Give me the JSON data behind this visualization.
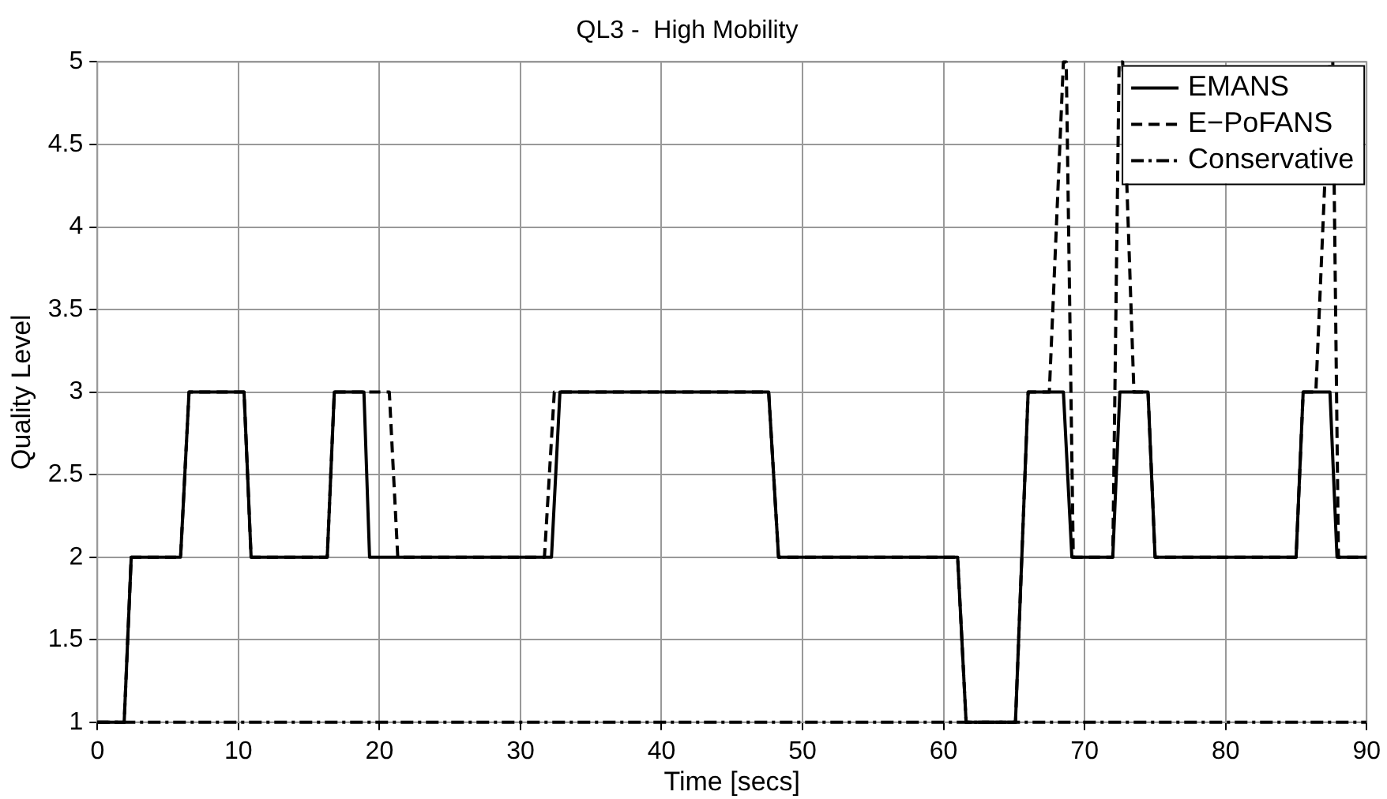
{
  "chart_data": {
    "type": "line",
    "title": "QL3 -  High Mobility",
    "xlabel": "Time [secs]",
    "ylabel": "Quality Level",
    "xlim": [
      0,
      90
    ],
    "xticks": [
      0,
      10,
      20,
      30,
      40,
      50,
      60,
      70,
      80,
      90
    ],
    "ylim": [
      1,
      5
    ],
    "yticks": [
      1,
      1.5,
      2,
      2.5,
      3,
      3.5,
      4,
      4.5,
      5
    ],
    "grid": true,
    "legend": "top right",
    "marker": "none",
    "series": [
      {
        "name": "EMANS",
        "color": "#000000",
        "line_style": "solid",
        "x": [
          0,
          1.9,
          2.4,
          5.9,
          6.5,
          10.4,
          10.9,
          16.3,
          16.8,
          18.9,
          19.3,
          32.2,
          32.8,
          47.6,
          48.3,
          61.0,
          61.6,
          65.1,
          66.0,
          68.5,
          69.1,
          72.0,
          72.5,
          74.5,
          75.0,
          85.0,
          85.5,
          87.4,
          87.9,
          90
        ],
        "values": [
          1,
          1,
          2,
          2,
          3,
          3,
          2,
          2,
          3,
          3,
          2,
          2,
          3,
          3,
          2,
          2,
          1,
          1,
          3,
          3,
          2,
          2,
          3,
          3,
          2,
          2,
          3,
          3,
          2,
          2
        ]
      },
      {
        "name": "E−PoFANS",
        "color": "#000000",
        "line_style": "dashed",
        "x": [
          0,
          1.9,
          2.4,
          5.9,
          6.5,
          10.4,
          10.9,
          16.3,
          16.8,
          20.7,
          21.3,
          31.7,
          32.4,
          47.6,
          48.3,
          61.0,
          61.6,
          65.1,
          66.0,
          67.5,
          68.5,
          68.7,
          69.2,
          72.0,
          72.45,
          72.7,
          73.5,
          74.5,
          75.0,
          85.0,
          85.5,
          86.4,
          87.4,
          87.6,
          88.0,
          90
        ],
        "values": [
          1,
          1,
          2,
          2,
          3,
          3,
          2,
          2,
          3,
          3,
          2,
          2,
          3,
          3,
          2,
          2,
          1,
          1,
          3,
          3,
          5,
          5,
          2,
          2,
          5,
          5,
          3,
          3,
          2,
          2,
          3,
          3,
          5,
          5,
          2,
          2
        ]
      },
      {
        "name": "Conservative",
        "color": "#000000",
        "line_style": "dashdot",
        "x": [
          0,
          90
        ],
        "values": [
          1,
          1
        ]
      }
    ]
  }
}
